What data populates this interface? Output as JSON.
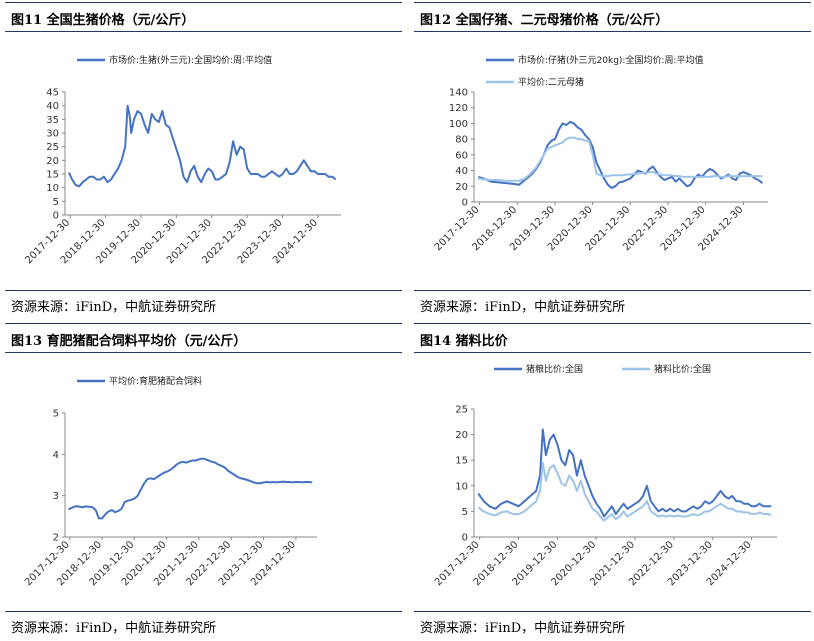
{
  "panels": [
    {
      "title": "图11  全国生猪价格（元/公斤）",
      "source": "资源来源：iFinD，中航证券研究所"
    },
    {
      "title": "图12  全国仔猪、二元母猪价格（元/公斤）",
      "source": "资源来源：iFinD，中航证券研究所"
    },
    {
      "title": "图13  育肥猪配合饲料平均价（元/公斤）",
      "source": "资源来源：iFinD，中航证券研究所"
    },
    {
      "title": "图14  猪料比价",
      "source": "资源来源：iFinD，中航证券研究所"
    }
  ],
  "chart_data": [
    {
      "type": "line",
      "x_ticks": [
        "2017-12-30",
        "2018-12-30",
        "2019-12-30",
        "2020-12-30",
        "2021-12-30",
        "2022-12-30",
        "2023-12-30",
        "2024-12-30"
      ],
      "ylim": [
        0,
        45
      ],
      "y_ticks": [
        0,
        5,
        10,
        15,
        20,
        25,
        30,
        35,
        40,
        45
      ],
      "legend_position": "top-center",
      "series": [
        {
          "name": "市场价:生猪(外三元):全国均价:周:平均值",
          "color": "#4472c4",
          "x": [
            2017.96,
            2018.05,
            2018.15,
            2018.25,
            2018.35,
            2018.45,
            2018.55,
            2018.65,
            2018.75,
            2018.85,
            2018.95,
            2019.05,
            2019.15,
            2019.25,
            2019.35,
            2019.45,
            2019.55,
            2019.62,
            2019.68,
            2019.72,
            2019.8,
            2019.9,
            2020.0,
            2020.1,
            2020.2,
            2020.3,
            2020.4,
            2020.5,
            2020.6,
            2020.7,
            2020.8,
            2020.9,
            2021.0,
            2021.1,
            2021.2,
            2021.3,
            2021.4,
            2021.5,
            2021.6,
            2021.7,
            2021.8,
            2021.9,
            2022.0,
            2022.1,
            2022.2,
            2022.3,
            2022.4,
            2022.5,
            2022.6,
            2022.7,
            2022.8,
            2022.9,
            2023.0,
            2023.1,
            2023.2,
            2023.3,
            2023.4,
            2023.5,
            2023.6,
            2023.7,
            2023.8,
            2023.9,
            2024.0,
            2024.1,
            2024.2,
            2024.3,
            2024.4,
            2024.5,
            2024.6,
            2024.7,
            2024.8,
            2024.9,
            2025.0,
            2025.1,
            2025.2,
            2025.3,
            2025.4,
            2025.5
          ],
          "values": [
            15.5,
            13,
            11,
            10.5,
            12,
            13,
            14,
            14,
            13,
            13,
            14,
            12,
            13,
            15,
            17,
            20,
            25,
            40,
            36,
            30,
            35,
            38,
            37,
            33,
            30,
            37,
            35,
            34,
            38,
            33,
            32,
            28,
            24,
            20,
            14,
            12,
            16,
            18,
            14,
            12,
            15,
            17,
            16,
            13,
            13,
            14,
            15,
            19,
            27,
            22,
            25,
            24,
            17,
            15,
            15,
            15,
            14,
            14,
            15,
            16,
            15,
            14,
            15,
            17,
            15,
            15,
            16,
            18,
            20,
            18,
            16,
            16,
            15,
            15,
            15,
            14,
            14,
            13
          ]
        }
      ]
    },
    {
      "type": "line",
      "x_ticks": [
        "2017-12-30",
        "2018-12-30",
        "2019-12-30",
        "2020-12-30",
        "2021-12-30",
        "2022-12-30",
        "2023-12-30",
        "2024-12-30"
      ],
      "ylim": [
        0,
        140
      ],
      "y_ticks": [
        0,
        20,
        40,
        60,
        80,
        100,
        120,
        140
      ],
      "legend_position": "top-center",
      "series": [
        {
          "name": "市场价:仔猪(外三元20kg):全国均价:周:平均值",
          "color": "#4472c4",
          "x": [
            2017.96,
            2018.1,
            2018.3,
            2018.5,
            2018.7,
            2018.9,
            2019.05,
            2019.2,
            2019.35,
            2019.5,
            2019.6,
            2019.7,
            2019.8,
            2019.9,
            2020.0,
            2020.1,
            2020.2,
            2020.3,
            2020.4,
            2020.5,
            2020.6,
            2020.7,
            2020.8,
            2020.9,
            2021.0,
            2021.1,
            2021.2,
            2021.3,
            2021.4,
            2021.5,
            2021.6,
            2021.7,
            2021.8,
            2021.9,
            2022.0,
            2022.1,
            2022.2,
            2022.3,
            2022.4,
            2022.5,
            2022.6,
            2022.7,
            2022.8,
            2022.9,
            2023.0,
            2023.1,
            2023.2,
            2023.3,
            2023.4,
            2023.5,
            2023.6,
            2023.7,
            2023.8,
            2023.9,
            2024.0,
            2024.1,
            2024.2,
            2024.3,
            2024.4,
            2024.5,
            2024.6,
            2024.7,
            2024.8,
            2024.9,
            2025.0,
            2025.1,
            2025.2,
            2025.3,
            2025.4,
            2025.5
          ],
          "values": [
            32,
            30,
            26,
            25,
            24,
            23,
            22,
            28,
            34,
            42,
            50,
            60,
            72,
            78,
            80,
            92,
            100,
            98,
            102,
            100,
            95,
            92,
            85,
            80,
            70,
            50,
            40,
            30,
            22,
            18,
            20,
            25,
            26,
            28,
            30,
            35,
            40,
            38,
            36,
            42,
            45,
            38,
            32,
            28,
            30,
            32,
            26,
            30,
            25,
            20,
            22,
            30,
            35,
            32,
            38,
            42,
            40,
            35,
            30,
            32,
            35,
            30,
            28,
            36,
            38,
            36,
            34,
            30,
            28,
            24
          ]
        },
        {
          "name": "平均价:二元母猪",
          "color": "#9dc3e6",
          "x": [
            2017.96,
            2018.1,
            2018.3,
            2018.5,
            2018.7,
            2018.9,
            2019.05,
            2019.2,
            2019.35,
            2019.5,
            2019.6,
            2019.7,
            2019.8,
            2019.9,
            2020.0,
            2020.1,
            2020.2,
            2020.3,
            2020.4,
            2020.5,
            2020.6,
            2020.7,
            2020.8,
            2020.9,
            2021.0,
            2021.1,
            2021.2,
            2021.3,
            2021.4,
            2021.5,
            2021.6,
            2021.7,
            2021.8,
            2021.9,
            2022.0,
            2022.1,
            2022.2,
            2022.3,
            2022.4,
            2022.5,
            2022.6,
            2022.7,
            2022.8,
            2022.9,
            2023.0,
            2023.1,
            2023.2,
            2023.3,
            2023.4,
            2023.5,
            2023.6,
            2023.7,
            2023.8,
            2023.9,
            2024.0,
            2024.1,
            2024.2,
            2024.3,
            2024.4,
            2024.5,
            2024.6,
            2024.7,
            2024.8,
            2024.9,
            2025.0,
            2025.1,
            2025.2,
            2025.3,
            2025.4,
            2025.5
          ],
          "values": [
            30,
            29,
            28,
            28,
            27,
            27,
            27,
            30,
            36,
            44,
            52,
            60,
            68,
            70,
            72,
            74,
            76,
            80,
            82,
            82,
            80,
            80,
            78,
            78,
            60,
            36,
            34,
            33,
            33,
            34,
            34,
            34,
            34,
            35,
            35,
            36,
            36,
            37,
            37,
            38,
            38,
            36,
            35,
            34,
            34,
            34,
            33,
            33,
            32,
            32,
            32,
            32,
            32,
            32,
            32,
            32,
            33,
            33,
            32,
            32,
            33,
            33,
            33,
            33,
            33,
            33,
            33,
            33,
            33,
            33
          ]
        }
      ]
    },
    {
      "type": "line",
      "x_ticks": [
        "2017-12-30",
        "2018-12-30",
        "2019-12-30",
        "2020-12-30",
        "2021-12-30",
        "2022-12-30",
        "2023-12-30",
        "2024-12-30"
      ],
      "ylim": [
        2,
        5
      ],
      "y_ticks": [
        2,
        3,
        4,
        5
      ],
      "legend_position": "top-center",
      "series": [
        {
          "name": "平均价:育肥猪配合饲料",
          "color": "#4472c4",
          "x": [
            2017.96,
            2018.1,
            2018.2,
            2018.3,
            2018.4,
            2018.5,
            2018.6,
            2018.7,
            2018.8,
            2018.9,
            2019.0,
            2019.1,
            2019.2,
            2019.3,
            2019.4,
            2019.5,
            2019.6,
            2019.7,
            2019.8,
            2019.9,
            2020.0,
            2020.1,
            2020.2,
            2020.3,
            2020.4,
            2020.5,
            2020.6,
            2020.7,
            2020.8,
            2020.9,
            2021.0,
            2021.1,
            2021.2,
            2021.3,
            2021.4,
            2021.5,
            2021.6,
            2021.7,
            2021.8,
            2021.9,
            2022.0,
            2022.1,
            2022.2,
            2022.3,
            2022.4,
            2022.5,
            2022.6,
            2022.7,
            2022.8,
            2022.9,
            2023.0,
            2023.1,
            2023.2,
            2023.3,
            2023.4,
            2023.5,
            2023.6,
            2023.7,
            2023.8,
            2023.9,
            2024.0,
            2024.1,
            2024.2,
            2024.3,
            2024.4,
            2024.5,
            2024.6,
            2024.7,
            2024.8,
            2024.9,
            2025.0,
            2025.1,
            2025.2,
            2025.3,
            2025.4,
            2025.5
          ],
          "values": [
            2.67,
            2.72,
            2.75,
            2.73,
            2.72,
            2.74,
            2.73,
            2.72,
            2.65,
            2.45,
            2.45,
            2.55,
            2.62,
            2.65,
            2.6,
            2.63,
            2.68,
            2.85,
            2.88,
            2.9,
            2.93,
            3.0,
            3.15,
            3.3,
            3.4,
            3.42,
            3.4,
            3.45,
            3.5,
            3.55,
            3.58,
            3.62,
            3.68,
            3.75,
            3.8,
            3.82,
            3.8,
            3.83,
            3.85,
            3.85,
            3.88,
            3.9,
            3.88,
            3.85,
            3.82,
            3.8,
            3.75,
            3.72,
            3.68,
            3.6,
            3.55,
            3.5,
            3.45,
            3.42,
            3.4,
            3.38,
            3.35,
            3.32,
            3.3,
            3.3,
            3.32,
            3.33,
            3.32,
            3.33,
            3.32,
            3.33,
            3.34,
            3.33,
            3.33,
            3.32,
            3.33,
            3.33,
            3.32,
            3.33,
            3.33,
            3.32
          ]
        }
      ]
    },
    {
      "type": "line",
      "x_ticks": [
        "2017-12-30",
        "2018-12-30",
        "2019-12-30",
        "2020-12-30",
        "2021-12-30",
        "2022-12-30",
        "2023-12-30",
        "2024-12-30"
      ],
      "ylim": [
        0,
        25
      ],
      "y_ticks": [
        0,
        5,
        10,
        15,
        20,
        25
      ],
      "legend_position": "top-center",
      "series": [
        {
          "name": "猪粮比价:全国",
          "color": "#4472c4",
          "x": [
            2017.96,
            2018.1,
            2018.25,
            2018.4,
            2018.55,
            2018.7,
            2018.85,
            2019.0,
            2019.15,
            2019.3,
            2019.45,
            2019.55,
            2019.62,
            2019.7,
            2019.8,
            2019.9,
            2020.0,
            2020.1,
            2020.2,
            2020.3,
            2020.4,
            2020.5,
            2020.6,
            2020.7,
            2020.8,
            2020.9,
            2021.0,
            2021.1,
            2021.2,
            2021.3,
            2021.4,
            2021.5,
            2021.6,
            2021.7,
            2021.8,
            2021.9,
            2022.0,
            2022.1,
            2022.2,
            2022.3,
            2022.4,
            2022.5,
            2022.6,
            2022.7,
            2022.8,
            2022.9,
            2023.0,
            2023.1,
            2023.2,
            2023.3,
            2023.4,
            2023.5,
            2023.6,
            2023.7,
            2023.8,
            2023.9,
            2024.0,
            2024.1,
            2024.2,
            2024.3,
            2024.4,
            2024.5,
            2024.6,
            2024.7,
            2024.8,
            2024.9,
            2025.0,
            2025.1,
            2025.2,
            2025.3,
            2025.4,
            2025.5
          ],
          "values": [
            8.5,
            7,
            6,
            5.5,
            6.5,
            7,
            6.5,
            6,
            7,
            8,
            9,
            12,
            21,
            16,
            19,
            20,
            18,
            15,
            14,
            17,
            16,
            12,
            15,
            12,
            10,
            8,
            6.5,
            5.5,
            4,
            5,
            6,
            4.5,
            5.5,
            6.5,
            5.5,
            6,
            6.5,
            7,
            8,
            10,
            7,
            6,
            5,
            5.5,
            5,
            5.5,
            5,
            5.5,
            5,
            5,
            5.5,
            6,
            5.5,
            6,
            7,
            6.5,
            7,
            8,
            9,
            8,
            7.5,
            8,
            7,
            7,
            6.5,
            6.5,
            6,
            6,
            6.5,
            6,
            6,
            6
          ]
        },
        {
          "name": "猪料比价:全国",
          "color": "#9dc3e6",
          "x": [
            2017.96,
            2018.1,
            2018.25,
            2018.4,
            2018.55,
            2018.7,
            2018.85,
            2019.0,
            2019.15,
            2019.3,
            2019.45,
            2019.55,
            2019.62,
            2019.7,
            2019.8,
            2019.9,
            2020.0,
            2020.1,
            2020.2,
            2020.3,
            2020.4,
            2020.5,
            2020.6,
            2020.7,
            2020.8,
            2020.9,
            2021.0,
            2021.1,
            2021.2,
            2021.3,
            2021.4,
            2021.5,
            2021.6,
            2021.7,
            2021.8,
            2021.9,
            2022.0,
            2022.1,
            2022.2,
            2022.3,
            2022.4,
            2022.5,
            2022.6,
            2022.7,
            2022.8,
            2022.9,
            2023.0,
            2023.1,
            2023.2,
            2023.3,
            2023.4,
            2023.5,
            2023.6,
            2023.7,
            2023.8,
            2023.9,
            2024.0,
            2024.1,
            2024.2,
            2024.3,
            2024.4,
            2024.5,
            2024.6,
            2024.7,
            2024.8,
            2024.9,
            2025.0,
            2025.1,
            2025.2,
            2025.3,
            2025.4,
            2025.5
          ],
          "values": [
            5.8,
            5,
            4.5,
            4.2,
            4.8,
            5,
            4.5,
            4.5,
            5,
            6,
            7,
            9,
            14.5,
            11,
            13.5,
            14,
            12.5,
            10.5,
            10,
            12,
            11,
            9,
            11,
            8.5,
            7,
            5.5,
            5,
            4,
            3.2,
            3.8,
            4.5,
            3.5,
            4,
            5,
            4,
            4.5,
            5,
            5.5,
            6,
            7,
            5,
            4.5,
            4,
            4.2,
            4,
            4.2,
            4,
            4.2,
            4,
            4,
            4.2,
            4.5,
            4.2,
            4.5,
            5,
            5,
            5.5,
            6,
            6.5,
            6,
            5.5,
            5.5,
            5,
            5,
            4.8,
            4.8,
            4.5,
            4.5,
            4.8,
            4.5,
            4.5,
            4.3
          ]
        }
      ]
    }
  ]
}
